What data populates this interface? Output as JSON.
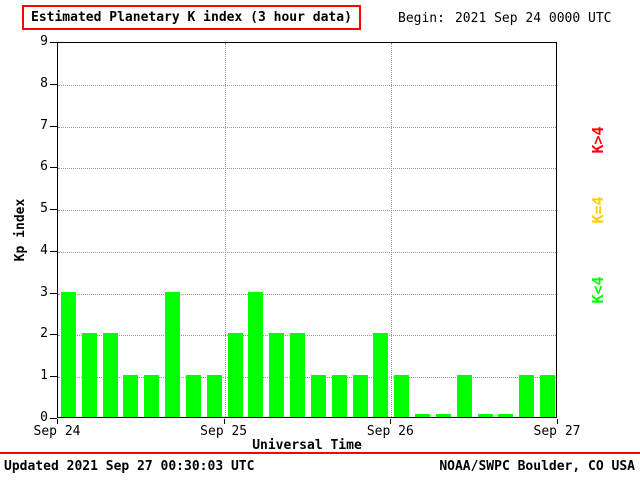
{
  "header": {
    "title": "Estimated Planetary K index (3 hour data)",
    "begin_label": "Begin:",
    "begin_value": "2021 Sep 24 0000 UTC"
  },
  "chart_data": {
    "type": "bar",
    "title": "Estimated Planetary K index (3 hour data)",
    "xlabel": "Universal Time",
    "ylabel": "Kp index",
    "ylim": [
      0,
      9
    ],
    "y_ticks": [
      0,
      1,
      2,
      3,
      4,
      5,
      6,
      7,
      8,
      9
    ],
    "x_ticks": [
      "Sep 24",
      "Sep 25",
      "Sep 26",
      "Sep 27"
    ],
    "bar_interval_hours": 3,
    "bar_color": "#00ff00",
    "grid": "dotted",
    "values": [
      3,
      2,
      2,
      1,
      1,
      3,
      1,
      1,
      2,
      3,
      2,
      2,
      1,
      1,
      1,
      2,
      1,
      0,
      0,
      1,
      0,
      0,
      1,
      1
    ],
    "legend": [
      {
        "label": "K>4",
        "color": "#ff0000"
      },
      {
        "label": "K=4",
        "color": "#ffcc00"
      },
      {
        "label": "K<4",
        "color": "#00ff00"
      }
    ],
    "legend_position": "right"
  },
  "footer": {
    "updated": "Updated 2021 Sep 27 00:30:03 UTC",
    "source": "NOAA/SWPC Boulder, CO USA"
  }
}
